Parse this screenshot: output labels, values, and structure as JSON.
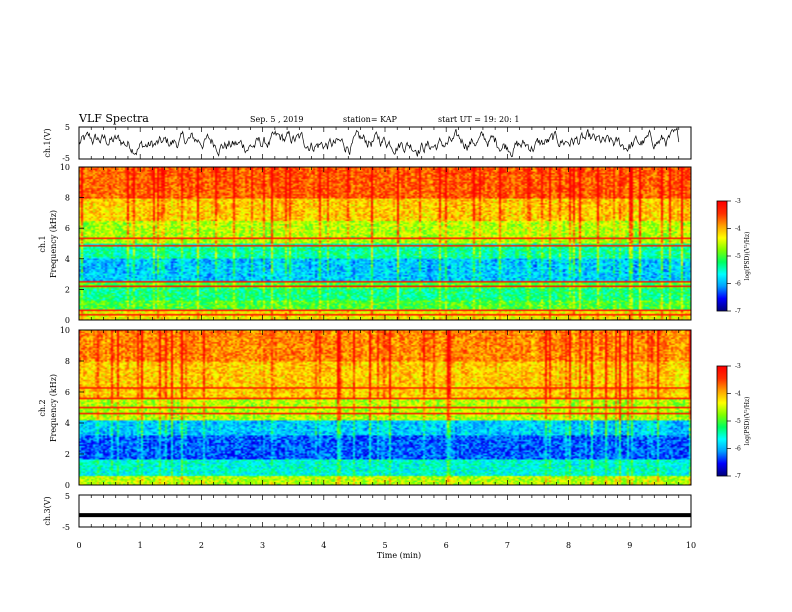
{
  "header": {
    "title": "VLF Spectra",
    "date": "Sep. 5 , 2019",
    "station": "station= KAP",
    "start_time": "start UT = 19: 20: 1"
  },
  "colors": {
    "colormap": [
      "#00007f",
      "#0000ff",
      "#00a0ff",
      "#00ffff",
      "#00ff60",
      "#7fff00",
      "#ffff00",
      "#ffa000",
      "#ff3000",
      "#ff0000"
    ],
    "background": "#ffffff",
    "line": "#000000"
  },
  "chart_data": [
    {
      "type": "line",
      "name": "ch1-waveform",
      "ylabel": "ch.1(V)",
      "ylim": [
        -5,
        5
      ],
      "yticks": [
        "5",
        "-5"
      ],
      "xlim": [
        0,
        10
      ],
      "description_values": "noisy waveform around 0 V, amplitude ~±3 V"
    },
    {
      "type": "heatmap",
      "name": "ch1-spectrogram",
      "ylabel": "ch.1\nFrequency (kHz)",
      "ylabel_lines": [
        "ch.1",
        "Frequency (kHz)"
      ],
      "ylim": [
        0,
        10
      ],
      "yticks": [
        "0",
        "2",
        "4",
        "6",
        "8",
        "10"
      ],
      "xlim": [
        0,
        9.8
      ],
      "colorbar": {
        "label": "log(PSD)(V²/Hz)",
        "ticks": [
          "-3",
          "-4",
          "-5",
          "-6",
          "-7"
        ],
        "range": [
          -7,
          -3
        ]
      },
      "bands_kHz": [
        {
          "f0": 0,
          "f1": 0.5,
          "level": -4.3
        },
        {
          "f0": 0.5,
          "f1": 1.2,
          "level": -5.0
        },
        {
          "f0": 1.2,
          "f1": 2.0,
          "level": -5.3
        },
        {
          "f0": 2.0,
          "f1": 2.5,
          "level": -5.0
        },
        {
          "f0": 2.5,
          "f1": 4.0,
          "level": -5.9
        },
        {
          "f0": 4.0,
          "f1": 5.0,
          "level": -5.4
        },
        {
          "f0": 5.0,
          "f1": 6.5,
          "level": -4.6
        },
        {
          "f0": 6.5,
          "f1": 8.0,
          "level": -4.1
        },
        {
          "f0": 8.0,
          "f1": 10.0,
          "level": -3.6
        }
      ],
      "lines_kHz": [
        0.3,
        0.6,
        2.2,
        2.5,
        4.9,
        5.3
      ]
    },
    {
      "type": "heatmap",
      "name": "ch2-spectrogram",
      "ylabel": "ch.2\nFrequency (kHz)",
      "ylabel_lines": [
        "ch.2",
        "Frequency (kHz)"
      ],
      "ylim": [
        0,
        10
      ],
      "yticks": [
        "0",
        "2",
        "4",
        "6",
        "8",
        "10"
      ],
      "xlim": [
        0,
        9.8
      ],
      "colorbar": {
        "label": "log(PSD)(V²/Hz)",
        "ticks": [
          "-3",
          "-4",
          "-5",
          "-6",
          "-7"
        ],
        "range": [
          -7,
          -3
        ]
      },
      "bands_kHz": [
        {
          "f0": 0,
          "f1": 0.5,
          "level": -4.6
        },
        {
          "f0": 0.5,
          "f1": 1.6,
          "level": -5.6
        },
        {
          "f0": 1.6,
          "f1": 3.2,
          "level": -6.3
        },
        {
          "f0": 3.2,
          "f1": 4.2,
          "level": -5.9
        },
        {
          "f0": 4.2,
          "f1": 5.5,
          "level": -4.6
        },
        {
          "f0": 5.5,
          "f1": 8.0,
          "level": -4.1
        },
        {
          "f0": 8.0,
          "f1": 10.0,
          "level": -3.8
        }
      ],
      "lines_kHz": [
        4.6,
        5.0,
        5.6,
        6.3
      ]
    },
    {
      "type": "line",
      "name": "ch3-waveform",
      "ylabel": "ch.3(V)",
      "ylim": [
        -5,
        5
      ],
      "yticks": [
        "5",
        "-5"
      ],
      "xlim": [
        0,
        10
      ],
      "constant_value": -1.3
    }
  ],
  "xaxis": {
    "label": "Time (min)",
    "ticks": [
      "0",
      "1",
      "2",
      "3",
      "4",
      "5",
      "6",
      "7",
      "8",
      "9",
      "10"
    ]
  }
}
